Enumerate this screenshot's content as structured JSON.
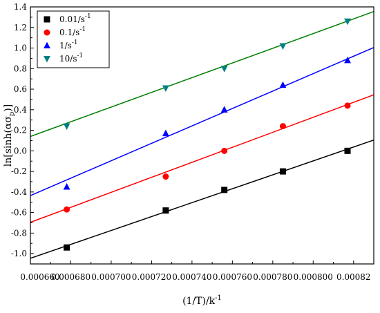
{
  "chart_data": {
    "type": "scatter",
    "title": "",
    "xlabel_parts": {
      "main": "(1/T)/k",
      "sup": "-1"
    },
    "ylabel_parts": {
      "pre": "ln[sinh(ασ",
      "sub": "p",
      "post": ")]"
    },
    "xlim": [
      0.00066,
      0.00083
    ],
    "ylim": [
      -1.1,
      1.4
    ],
    "x_ticks": [
      0.00066,
      0.00068,
      0.0007,
      0.00072,
      0.00074,
      0.00076,
      0.00078,
      0.0008,
      0.00082
    ],
    "x_tick_labels": [
      "0.000660",
      "0.000680",
      "0.000700",
      "0.000720",
      "0.000740",
      "0.000760",
      "0.000780",
      "0.000800",
      "0.00082"
    ],
    "y_ticks": [
      -1.0,
      -0.8,
      -0.6,
      -0.4,
      -0.2,
      0.0,
      0.2,
      0.4,
      0.6,
      0.8,
      1.0,
      1.2,
      1.4
    ],
    "y_tick_labels": [
      "-1.0",
      "-0.8",
      "-0.6",
      "-0.4",
      "-0.2",
      "0.0",
      "0.2",
      "0.4",
      "0.6",
      "0.8",
      "1.0",
      "1.2",
      "1.4"
    ],
    "legend_position": "top-left",
    "series": [
      {
        "name": "0.01/s⁻¹",
        "legend": {
          "main": "0.01/s",
          "sup": "-1"
        },
        "marker": "square",
        "color": "#000000",
        "x": [
          0.000678,
          0.000727,
          0.000756,
          0.000785,
          0.000817
        ],
        "y": [
          -0.94,
          -0.58,
          -0.38,
          -0.2,
          0.0
        ],
        "fit": [
          [
            0.00066,
            -1.045
          ],
          [
            0.00083,
            0.105
          ]
        ]
      },
      {
        "name": "0.1/s⁻¹",
        "legend": {
          "main": "0.1/s",
          "sup": "-1"
        },
        "marker": "circle",
        "color": "#ff0000",
        "x": [
          0.000678,
          0.000727,
          0.000756,
          0.000785,
          0.000817
        ],
        "y": [
          -0.57,
          -0.25,
          0.0,
          0.24,
          0.44
        ],
        "fit": [
          [
            0.00066,
            -0.695
          ],
          [
            0.00083,
            0.545
          ]
        ]
      },
      {
        "name": "1/s⁻¹",
        "legend": {
          "main": "1/s",
          "sup": "-1"
        },
        "marker": "triangle-up",
        "color": "#0000ff",
        "x": [
          0.000678,
          0.000727,
          0.000756,
          0.000785,
          0.000817
        ],
        "y": [
          -0.35,
          0.17,
          0.4,
          0.64,
          0.88
        ],
        "fit": [
          [
            0.00066,
            -0.435
          ],
          [
            0.00083,
            1.005
          ]
        ]
      },
      {
        "name": "10/s⁻¹",
        "legend": {
          "main": "10/s",
          "sup": "-1"
        },
        "marker": "triangle-down",
        "color": "#008080",
        "line_color": "#008000",
        "x": [
          0.000678,
          0.000727,
          0.000756,
          0.000785,
          0.000817
        ],
        "y": [
          0.24,
          0.61,
          0.8,
          1.02,
          1.26
        ],
        "fit": [
          [
            0.00066,
            0.14
          ],
          [
            0.00083,
            1.355
          ]
        ]
      }
    ]
  }
}
